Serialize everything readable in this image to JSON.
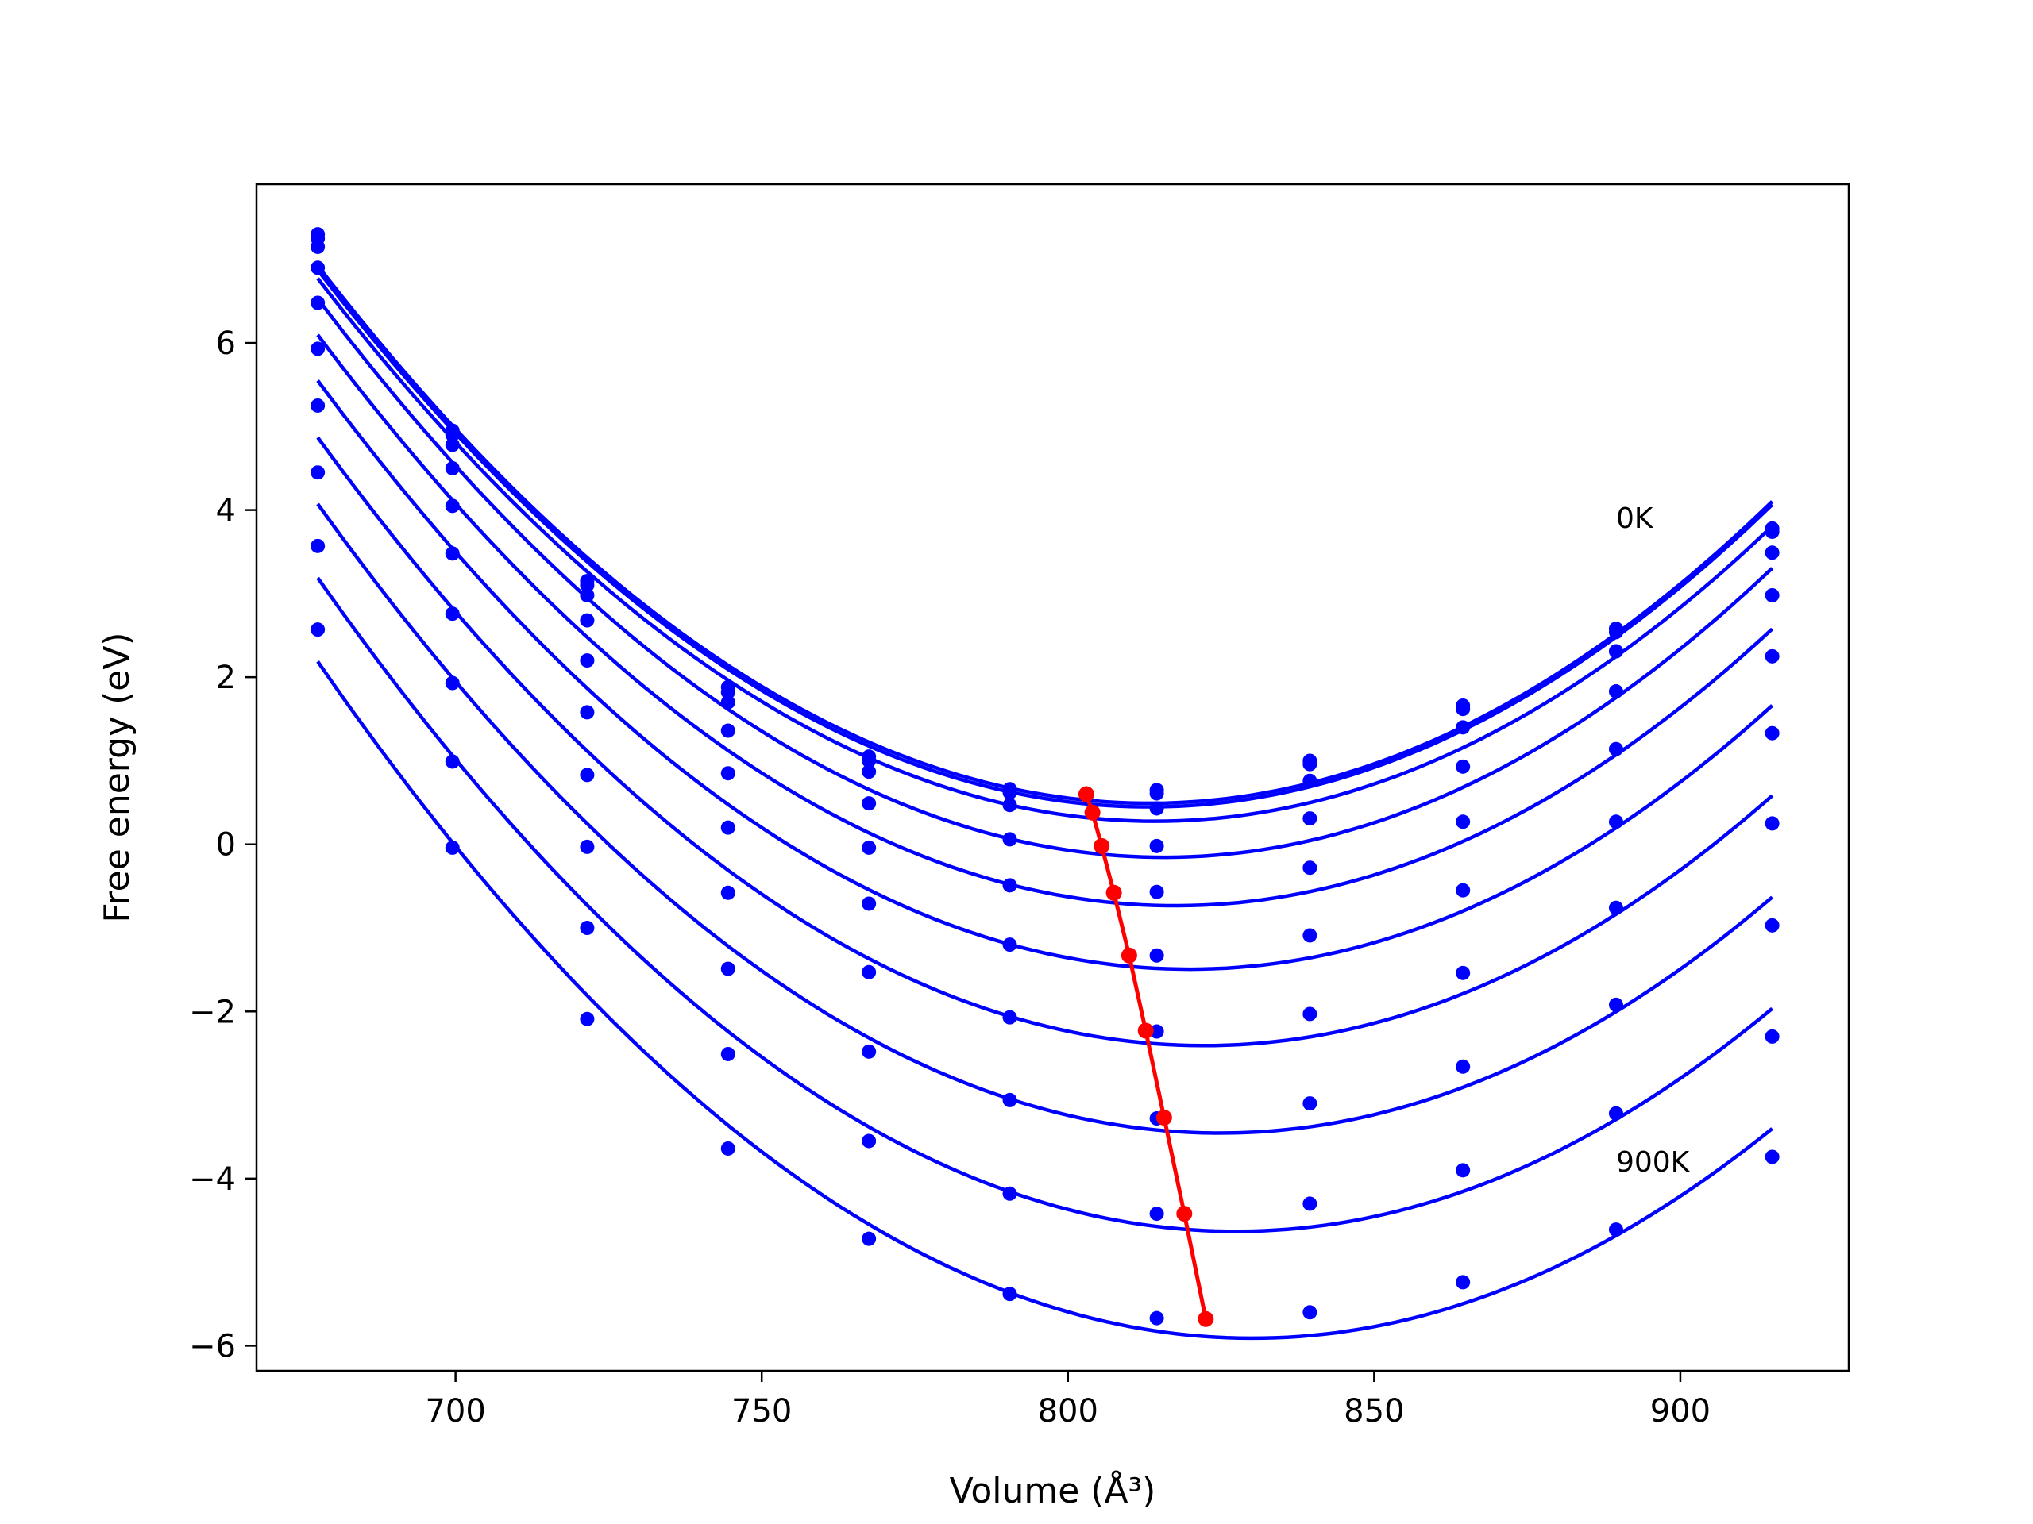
{
  "chart_data": {
    "type": "line",
    "title": "",
    "xlabel": "Volume (Å³)",
    "ylabel": "Free energy (eV)",
    "xlim": [
      667.5,
      927.5
    ],
    "ylim": [
      -6.3,
      7.9
    ],
    "xticks": [
      700,
      750,
      800,
      850,
      900
    ],
    "yticks": [
      -6,
      -4,
      -2,
      0,
      2,
      4,
      6
    ],
    "grid": false,
    "legend": "none",
    "annotations": [
      {
        "text": "0K",
        "x": 889.5,
        "y": 3.9
      },
      {
        "text": "900K",
        "x": 889.5,
        "y": -3.8
      }
    ],
    "x": [
      677.5,
      699.5,
      721.5,
      744.5,
      767.5,
      790.5,
      814.5,
      839.5,
      864.5,
      889.5,
      915.0
    ],
    "series": [
      {
        "color": "#0000ff",
        "values": [
          7.3,
          4.95,
          3.15,
          1.88,
          1.05,
          0.66,
          0.65,
          1.0,
          1.66,
          2.58,
          3.78
        ]
      },
      {
        "color": "#0000ff",
        "values": [
          7.25,
          4.9,
          3.1,
          1.82,
          1.0,
          0.62,
          0.61,
          0.96,
          1.62,
          2.54,
          3.74
        ]
      },
      {
        "color": "#0000ff",
        "values": [
          7.15,
          4.78,
          2.98,
          1.7,
          0.87,
          0.47,
          0.43,
          0.76,
          1.4,
          2.31,
          3.49
        ]
      },
      {
        "color": "#0000ff",
        "values": [
          6.9,
          4.5,
          2.68,
          1.36,
          0.49,
          0.06,
          -0.02,
          0.31,
          0.93,
          1.83,
          2.98
        ]
      },
      {
        "color": "#0000ff",
        "values": [
          6.48,
          4.05,
          2.2,
          0.85,
          -0.04,
          -0.49,
          -0.57,
          -0.28,
          0.27,
          1.14,
          2.25
        ]
      },
      {
        "color": "#0000ff",
        "values": [
          5.93,
          3.48,
          1.58,
          0.2,
          -0.71,
          -1.2,
          -1.33,
          -1.09,
          -0.55,
          0.27,
          1.33
        ]
      },
      {
        "color": "#0000ff",
        "values": [
          5.25,
          2.76,
          0.83,
          -0.58,
          -1.53,
          -2.07,
          -2.24,
          -2.03,
          -1.54,
          -0.76,
          0.25
        ]
      },
      {
        "color": "#0000ff",
        "values": [
          4.45,
          1.93,
          -0.03,
          -1.49,
          -2.48,
          -3.06,
          -3.28,
          -3.1,
          -2.66,
          -1.92,
          -0.97
        ]
      },
      {
        "color": "#0000ff",
        "values": [
          3.57,
          0.99,
          -1.0,
          -2.51,
          -3.55,
          -4.18,
          -4.42,
          -4.3,
          -3.9,
          -3.22,
          -2.3
        ]
      },
      {
        "color": "#0000ff",
        "values": [
          2.57,
          -0.04,
          -2.09,
          -3.64,
          -4.72,
          -5.38,
          -5.67,
          -5.6,
          -5.24,
          -4.61,
          -3.74
        ]
      }
    ],
    "minima": {
      "color": "#ff0000",
      "x": [
        803.0,
        804.0,
        805.5,
        807.5,
        810.0,
        812.7,
        815.7,
        819.0,
        822.5
      ],
      "y": [
        0.6,
        0.38,
        -0.02,
        -0.58,
        -1.33,
        -2.23,
        -3.27,
        -4.42,
        -5.68
      ]
    }
  }
}
